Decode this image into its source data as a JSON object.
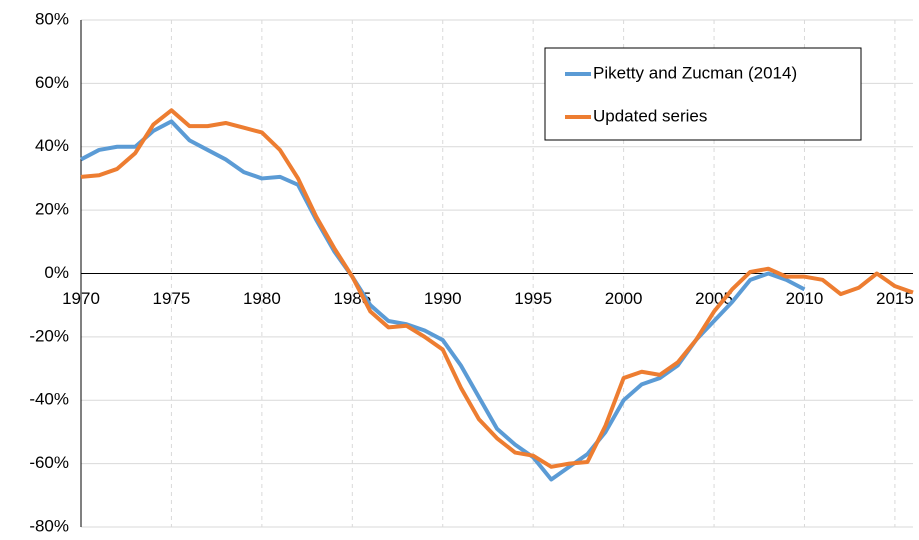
{
  "chart_data": {
    "type": "line",
    "x": [
      1970,
      1971,
      1972,
      1973,
      1974,
      1975,
      1976,
      1977,
      1978,
      1979,
      1980,
      1981,
      1982,
      1983,
      1984,
      1985,
      1986,
      1987,
      1988,
      1989,
      1990,
      1991,
      1992,
      1993,
      1994,
      1995,
      1996,
      1997,
      1998,
      1999,
      2000,
      2001,
      2002,
      2003,
      2004,
      2005,
      2006,
      2007,
      2008,
      2009,
      2010,
      2011,
      2012,
      2013,
      2014,
      2015,
      2016
    ],
    "series": [
      {
        "name": "Piketty and Zucman (2014)",
        "color": "#5b9bd5",
        "values": [
          36,
          39,
          40,
          40,
          45,
          48,
          42,
          39,
          36,
          32,
          30,
          30.5,
          28,
          17,
          7,
          -1,
          -10,
          -15,
          -16,
          -18,
          -21,
          -29,
          -39,
          -49,
          -54,
          -58,
          -65,
          -61,
          -57,
          -50,
          -40,
          -35,
          -33,
          -29,
          -21,
          -15,
          -9,
          -2,
          0,
          -2,
          -5,
          null,
          null,
          null,
          null,
          null,
          null
        ]
      },
      {
        "name": "Updated series",
        "color": "#ed7d31",
        "values": [
          30.5,
          31,
          33,
          38,
          47,
          51.5,
          46.5,
          46.5,
          47.5,
          46,
          44.5,
          39,
          30,
          18,
          8,
          -1,
          -12,
          -17,
          -16.5,
          -20,
          -24,
          -36,
          -46,
          -52,
          -56.5,
          -57.5,
          -61,
          -60,
          -59.5,
          -48,
          -33,
          -31,
          -32,
          -28,
          -21,
          -12,
          -5,
          0.5,
          1.5,
          -1,
          -1,
          -2,
          -6.5,
          -4.5,
          0,
          -4,
          -6
        ]
      }
    ],
    "xlim": [
      1970,
      2016
    ],
    "xticks": [
      1970,
      1975,
      1980,
      1985,
      1990,
      1995,
      2000,
      2005,
      2010,
      2015
    ],
    "ylim": [
      -80,
      80
    ],
    "yticks": [
      {
        "value": -80,
        "label": "-80%"
      },
      {
        "value": -60,
        "label": "-60%"
      },
      {
        "value": -40,
        "label": "-40%"
      },
      {
        "value": -20,
        "label": "-20%"
      },
      {
        "value": 0,
        "label": "0%"
      },
      {
        "value": 20,
        "label": "20%"
      },
      {
        "value": 40,
        "label": "40%"
      },
      {
        "value": 60,
        "label": "60%"
      },
      {
        "value": 80,
        "label": "80%"
      }
    ],
    "grid": true,
    "legend": "upper right"
  }
}
